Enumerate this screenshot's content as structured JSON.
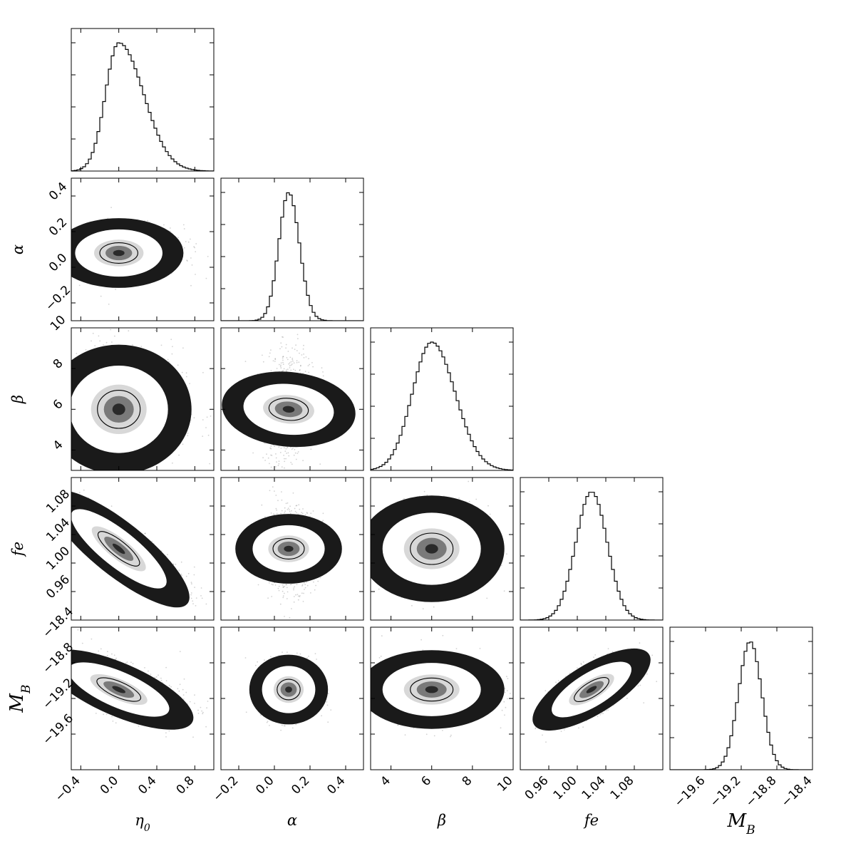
{
  "chart_data": {
    "type": "corner",
    "parameters": [
      {
        "key": "eta0",
        "label": "η",
        "sub": "0",
        "range": [
          -0.5,
          1.0
        ],
        "ticks": [
          -0.4,
          0.0,
          0.4,
          0.8
        ],
        "tick_labels": [
          "−0.4",
          "0.0",
          "0.4",
          "0.8"
        ],
        "mean": 0.0,
        "std_left": 0.14,
        "std_right": 0.26
      },
      {
        "key": "alpha",
        "label": "α",
        "sub": "",
        "range": [
          -0.3,
          0.5
        ],
        "ticks": [
          -0.2,
          0.0,
          0.2,
          0.4
        ],
        "tick_labels": [
          "−0.2",
          "0.0",
          "0.2",
          "0.4"
        ],
        "mean": 0.08,
        "std_left": 0.055,
        "std_right": 0.06
      },
      {
        "key": "beta",
        "label": "β",
        "sub": "",
        "range": [
          3.0,
          10.0
        ],
        "ticks": [
          4,
          6,
          8,
          10
        ],
        "tick_labels": [
          "4",
          "6",
          "8",
          "10"
        ],
        "mean": 6.0,
        "std_left": 0.95,
        "std_right": 1.15
      },
      {
        "key": "fe",
        "label": "fe",
        "sub": "",
        "range": [
          0.92,
          1.12
        ],
        "ticks": [
          0.96,
          1.0,
          1.04,
          1.08
        ],
        "tick_labels": [
          "0.96",
          "1.00",
          "1.04",
          "1.08"
        ],
        "mean": 1.02,
        "std_left": 0.022,
        "std_right": 0.022
      },
      {
        "key": "MB",
        "label": "M",
        "sub": "B",
        "range": [
          -20.0,
          -18.4
        ],
        "ticks": [
          -19.6,
          -19.2,
          -18.8,
          -18.4
        ],
        "tick_labels": [
          "−19.6",
          "−19.2",
          "−18.8",
          "−18.4"
        ],
        "mean": -19.1,
        "std_left": 0.13,
        "std_right": 0.13
      }
    ],
    "correlations": [
      {
        "i": 1,
        "j": 0,
        "rho": 0.0
      },
      {
        "i": 2,
        "j": 0,
        "rho": 0.0
      },
      {
        "i": 2,
        "j": 1,
        "rho": 0.15
      },
      {
        "i": 3,
        "j": 0,
        "rho": -0.85
      },
      {
        "i": 3,
        "j": 1,
        "rho": 0.0
      },
      {
        "i": 3,
        "j": 2,
        "rho": 0.0
      },
      {
        "i": 4,
        "j": 0,
        "rho": -0.55
      },
      {
        "i": 4,
        "j": 1,
        "rho": 0.0
      },
      {
        "i": 4,
        "j": 2,
        "rho": 0.0
      },
      {
        "i": 4,
        "j": 3,
        "rho": 0.6
      }
    ],
    "histogram_type": "step",
    "contour_levels_sigma": [
      1,
      2
    ],
    "grid": false
  }
}
